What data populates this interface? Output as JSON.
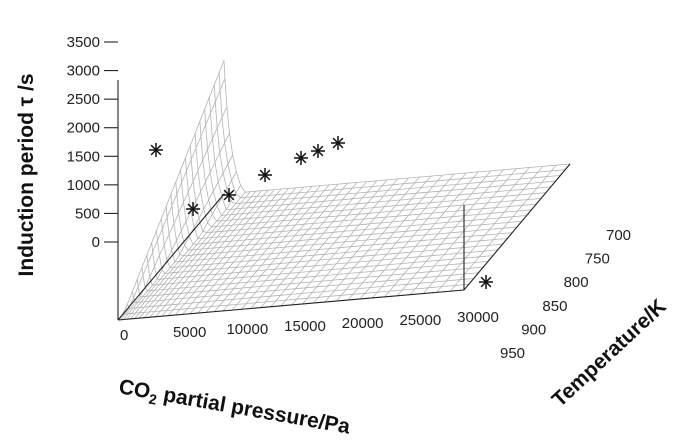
{
  "chart_data": {
    "type": "surface3d",
    "zlabel": "Induction period τ /s",
    "xlabel_prefix": "CO",
    "xlabel_sub": "2",
    "xlabel_suffix": " partial  pressure/Pa",
    "ylabel": "Temperature/K",
    "x_ticks": [
      "0",
      "5000",
      "10000",
      "15000",
      "20000",
      "25000",
      "30000"
    ],
    "y_ticks": [
      "700",
      "750",
      "800",
      "850",
      "900",
      "950"
    ],
    "z_ticks": [
      "0",
      "500",
      "1000",
      "1500",
      "2000",
      "2500",
      "3000",
      "3500"
    ],
    "xlim": [
      0,
      30000
    ],
    "ylim": [
      950,
      700
    ],
    "zlim": [
      0,
      3500
    ],
    "points": [
      {
        "x": 0,
        "y": 700,
        "z": 2100
      },
      {
        "x": 0,
        "y": 800,
        "z": 1000
      },
      {
        "x": 0,
        "y": 820,
        "z": 1400
      },
      {
        "x": 0,
        "y": 840,
        "z": 1800
      },
      {
        "x": 0,
        "y": 860,
        "z": 2200
      },
      {
        "x": 0,
        "y": 880,
        "z": 2400
      },
      {
        "x": 0,
        "y": 900,
        "z": 2600
      },
      {
        "x": 30000,
        "y": 950,
        "z": 0
      }
    ]
  }
}
